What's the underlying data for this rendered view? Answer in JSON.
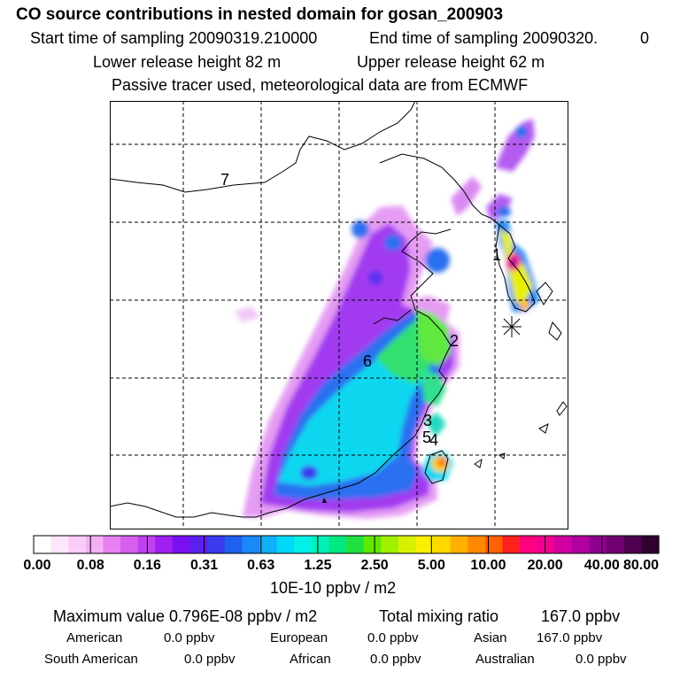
{
  "header": {
    "title": "CO  source contributions in nested domain for gosan_200903",
    "start_label": "Start time of sampling 20090319.210000",
    "end_label": "End time of sampling 20090320.",
    "end_suffix": "0",
    "lower_label": "Lower release height   82 m",
    "upper_label": "Upper release height   62 m",
    "note": "Passive tracer used, meteorological data are from ECMWF"
  },
  "map": {
    "region_labels": [
      "1",
      "2",
      "3",
      "4",
      "5",
      "6",
      "7"
    ]
  },
  "colorbar": {
    "ticks": [
      "0.00",
      "0.08",
      "0.16",
      "0.31",
      "0.63",
      "1.25",
      "2.50",
      "5.00",
      "10.00",
      "20.00",
      "40.00",
      "80.00"
    ],
    "units": "10E-10 ppbv / m2",
    "colors": [
      "#ffffff",
      "#fde6fd",
      "#f9ccf9",
      "#f5b0f5",
      "#e880f0",
      "#d660ee",
      "#c040f0",
      "#a020f0",
      "#7a10f0",
      "#5a20f0",
      "#3a3af0",
      "#2060f0",
      "#1a88f8",
      "#10b0f8",
      "#00d8f8",
      "#00f0e8",
      "#00f0b8",
      "#00e880",
      "#20e040",
      "#60e800",
      "#a0f000",
      "#d8f000",
      "#f8f000",
      "#ffd800",
      "#ffb000",
      "#ff8800",
      "#ff6000",
      "#ff2020",
      "#ff0080",
      "#f00090",
      "#d000a0",
      "#b000a0",
      "#900090",
      "#700070",
      "#500050",
      "#300030"
    ]
  },
  "stats": {
    "max_label": "Maximum value  0.796E-08 ppbv / m2",
    "total_label": "Total mixing ratio",
    "total_value": "167.0 ppbv",
    "rows": [
      [
        {
          "k": "American",
          "v": "0.0 ppbv"
        },
        {
          "k": "European",
          "v": "0.0 ppbv"
        },
        {
          "k": "Asian",
          "v": "167.0 ppbv"
        }
      ],
      [
        {
          "k": "South American",
          "v": "0.0 ppbv"
        },
        {
          "k": "African",
          "v": "0.0 ppbv"
        },
        {
          "k": "Australian",
          "v": "0.0 ppbv"
        }
      ]
    ]
  }
}
